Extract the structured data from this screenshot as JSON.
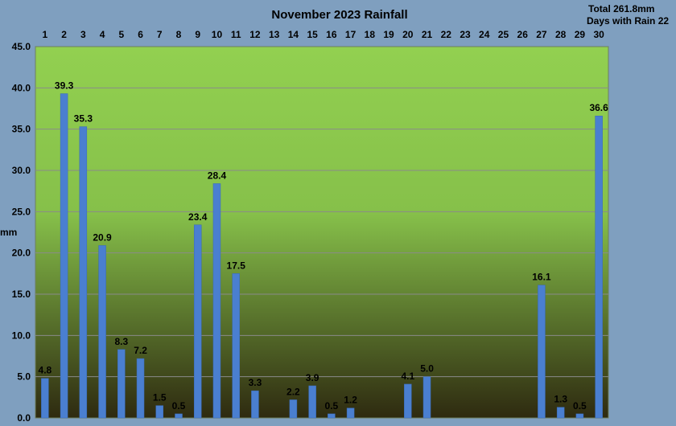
{
  "chart_data": {
    "type": "bar",
    "title": "November 2023 Rainfall",
    "ylabel": "mm",
    "xlabel": "",
    "summary": [
      "Total 261.8mm",
      "Days with Rain 22"
    ],
    "categories": [
      "1",
      "2",
      "3",
      "4",
      "5",
      "6",
      "7",
      "8",
      "9",
      "10",
      "11",
      "12",
      "13",
      "14",
      "15",
      "16",
      "17",
      "18",
      "19",
      "20",
      "21",
      "22",
      "23",
      "24",
      "25",
      "26",
      "27",
      "28",
      "29",
      "30"
    ],
    "values": [
      4.8,
      39.3,
      35.3,
      20.9,
      8.3,
      7.2,
      1.5,
      0.5,
      23.4,
      28.4,
      17.5,
      3.3,
      0,
      2.2,
      3.9,
      0.5,
      1.2,
      0,
      0,
      4.1,
      5.0,
      0,
      0,
      0,
      0,
      0,
      16.1,
      1.3,
      0.5,
      36.6
    ],
    "value_labels": [
      "4.8",
      "39.3",
      "35.3",
      "20.9",
      "8.3",
      "7.2",
      "1.5",
      "0.5",
      "23.4",
      "28.4",
      "17.5",
      "3.3",
      "",
      "2.2",
      "3.9",
      "0.5",
      "1.2",
      "",
      "",
      "4.1",
      "5.0",
      "",
      "",
      "",
      "",
      "",
      "16.1",
      "1.3",
      "0.5",
      "36.6"
    ],
    "ylim": [
      0,
      45
    ],
    "yticks": [
      "0.0",
      "5.0",
      "10.0",
      "15.0",
      "20.0",
      "25.0",
      "30.0",
      "35.0",
      "40.0",
      "45.0"
    ],
    "ystep": 5,
    "grid": true,
    "x_axis_position": "top",
    "legend": "none",
    "colors": {
      "background": "#7f9fbf",
      "plot_top": "#92d050",
      "plot_bottom": "#2e2a10",
      "bar": "#4a7fd0",
      "gridline": "#8a8a8a"
    }
  }
}
